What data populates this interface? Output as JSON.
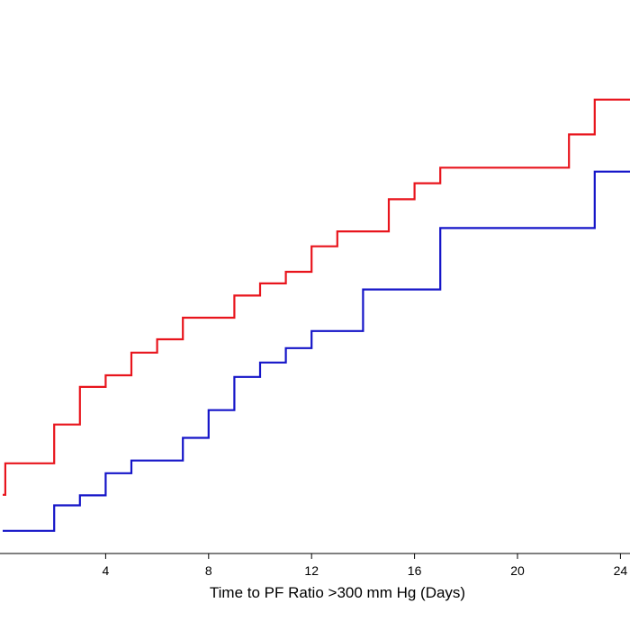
{
  "chart_data": {
    "type": "line",
    "step": true,
    "xlabel": "Time to PF Ratio >300 mm Hg  (Days)",
    "ylabel": "",
    "title": "",
    "x_ticks": [
      4,
      8,
      12,
      16,
      20,
      24
    ],
    "xlim": [
      0,
      25.2
    ],
    "ylim": [
      0.0,
      1.0
    ],
    "grid": false,
    "series": [
      {
        "color": "#e8141c",
        "x": [
          0,
          0.1,
          1,
          2,
          3,
          4,
          5,
          6,
          7,
          9,
          10,
          11,
          12,
          13,
          15,
          16,
          17,
          22,
          23,
          25.2
        ],
        "y": [
          0.106,
          0.163,
          0.163,
          0.233,
          0.301,
          0.322,
          0.363,
          0.387,
          0.426,
          0.466,
          0.488,
          0.509,
          0.555,
          0.582,
          0.64,
          0.669,
          0.697,
          0.757,
          0.82,
          0.82
        ]
      },
      {
        "color": "#1414c8",
        "x": [
          0,
          1,
          2,
          3,
          4,
          5,
          7,
          8,
          9,
          10,
          11,
          12,
          14,
          17,
          23,
          25.2
        ],
        "y": [
          0.041,
          0.041,
          0.087,
          0.105,
          0.145,
          0.168,
          0.209,
          0.259,
          0.319,
          0.345,
          0.371,
          0.402,
          0.477,
          0.588,
          0.69,
          0.69
        ]
      }
    ]
  }
}
